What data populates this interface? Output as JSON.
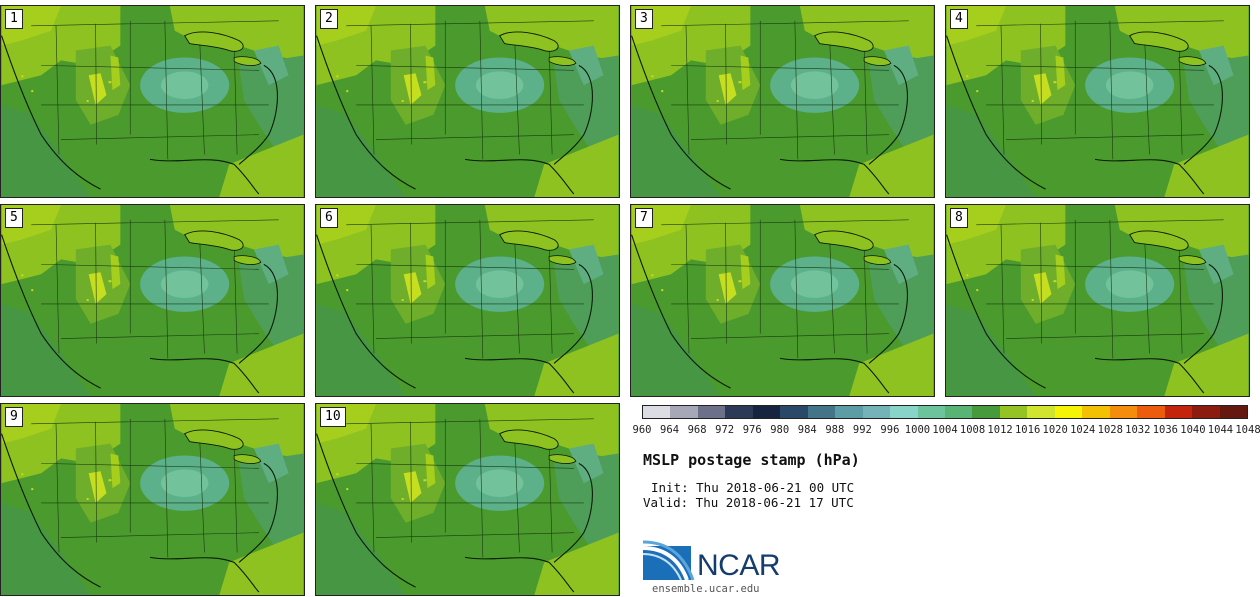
{
  "panels": [
    {
      "label": "1"
    },
    {
      "label": "2"
    },
    {
      "label": "3"
    },
    {
      "label": "4"
    },
    {
      "label": "5"
    },
    {
      "label": "6"
    },
    {
      "label": "7"
    },
    {
      "label": "8"
    },
    {
      "label": "9"
    },
    {
      "label": "10"
    }
  ],
  "legend": {
    "colors": [
      "#dcdce4",
      "#a6a8b8",
      "#6c7088",
      "#2c3a58",
      "#162440",
      "#2a4868",
      "#447488",
      "#5c9ca4",
      "#74b4b8",
      "#88d4c8",
      "#6cc49c",
      "#58b474",
      "#469a3c",
      "#94c424",
      "#d0e430",
      "#f4f404",
      "#f4c004",
      "#f48c0c",
      "#ec5c0c",
      "#c4240c",
      "#8c1c10",
      "#641810"
    ],
    "ticks": [
      "960",
      "964",
      "968",
      "972",
      "976",
      "980",
      "984",
      "988",
      "992",
      "996",
      "1000",
      "1004",
      "1008",
      "1012",
      "1016",
      "1020",
      "1024",
      "1028",
      "1032",
      "1036",
      "1040",
      "1044",
      "1048"
    ]
  },
  "title": "MSLP postage stamp (hPa)",
  "init_text": "Init: Thu 2018-06-21 00 UTC",
  "valid_text": "Valid: Thu 2018-06-21 17 UTC",
  "logo": {
    "brand": "NCAR",
    "url_text": "ensemble.ucar.edu"
  }
}
